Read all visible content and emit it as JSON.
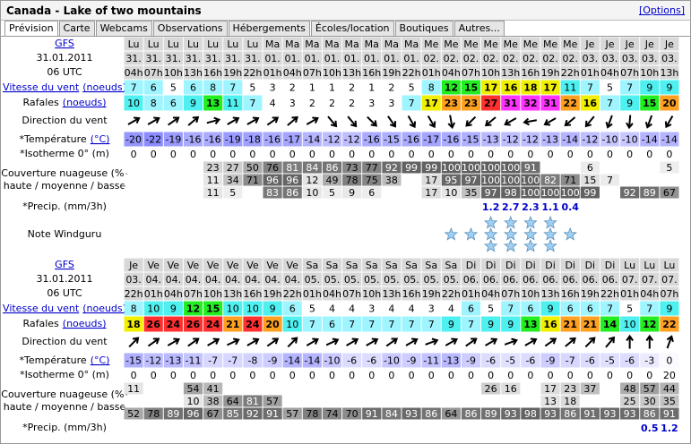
{
  "header": {
    "title": "Canada - Lake of two mountains",
    "options": "[Options]"
  },
  "tabs": [
    "Prévision",
    "Carte",
    "Webcams",
    "Observations",
    "Hébergements",
    "Écoles/location",
    "Boutiques",
    "Autres..."
  ],
  "labels": {
    "wind": "Vitesse du vent",
    "wind_unit": "(noeuds)",
    "gust": "Rafales",
    "gust_unit": "(noeuds)",
    "direction": "Direction du vent",
    "temperature": "*Température",
    "temperature_unit": "(°C)",
    "isotherm": "*Isotherme 0° (m)",
    "cloud": "Couverture nuageuse (%)",
    "cloud_levels": "haute / moyenne / basse",
    "precip": "*Precip. (mm/3h)",
    "rating": "Note Windguru"
  },
  "blocks": [
    {
      "model": "GFS",
      "run_date": "31.01.2011",
      "run_time": "06 UTC",
      "days": [
        "Lu",
        "Lu",
        "Lu",
        "Lu",
        "Lu",
        "Lu",
        "Lu",
        "Ma",
        "Ma",
        "Ma",
        "Ma",
        "Ma",
        "Ma",
        "Ma",
        "Ma",
        "Me",
        "Me",
        "Me",
        "Me",
        "Me",
        "Me",
        "Me",
        "Me",
        "Je",
        "Je",
        "Je",
        "Je",
        "Je"
      ],
      "dates": [
        "31.",
        "31.",
        "31.",
        "31.",
        "31.",
        "31.",
        "31.",
        "01.",
        "01.",
        "01.",
        "01.",
        "01.",
        "01.",
        "01.",
        "01.",
        "02.",
        "02.",
        "02.",
        "02.",
        "02.",
        "02.",
        "02.",
        "02.",
        "03.",
        "03.",
        "03.",
        "03.",
        "03."
      ],
      "hours": [
        "04h",
        "07h",
        "10h",
        "13h",
        "16h",
        "19h",
        "22h",
        "01h",
        "04h",
        "07h",
        "10h",
        "13h",
        "16h",
        "19h",
        "22h",
        "01h",
        "04h",
        "07h",
        "10h",
        "13h",
        "16h",
        "19h",
        "22h",
        "01h",
        "04h",
        "07h",
        "10h",
        "13h"
      ],
      "wind": [
        7,
        6,
        5,
        6,
        8,
        7,
        5,
        3,
        2,
        1,
        1,
        2,
        1,
        2,
        5,
        8,
        12,
        15,
        17,
        16,
        18,
        17,
        11,
        7,
        5,
        7,
        9,
        9
      ],
      "gust": [
        10,
        8,
        6,
        9,
        13,
        11,
        7,
        4,
        3,
        2,
        2,
        2,
        3,
        3,
        7,
        17,
        23,
        23,
        27,
        31,
        32,
        31,
        22,
        16,
        7,
        9,
        15,
        20
      ],
      "direction": [
        60,
        60,
        55,
        50,
        75,
        60,
        60,
        55,
        50,
        60,
        140,
        140,
        135,
        145,
        150,
        150,
        170,
        225,
        230,
        240,
        260,
        240,
        230,
        220,
        200,
        185,
        200,
        210
      ],
      "temperature": [
        -20,
        -22,
        -19,
        -16,
        -16,
        -19,
        -18,
        -16,
        -17,
        -14,
        -12,
        -12,
        -16,
        -15,
        -16,
        -17,
        -16,
        -15,
        -13,
        -12,
        -12,
        -13,
        -14,
        -12,
        -10,
        -10,
        -14,
        -14
      ],
      "isotherm": [
        0,
        0,
        0,
        0,
        0,
        0,
        0,
        0,
        0,
        0,
        0,
        0,
        0,
        0,
        0,
        0,
        0,
        0,
        0,
        0,
        0,
        0,
        0,
        0,
        0,
        0,
        0,
        0
      ],
      "cloud_high": [
        null,
        null,
        null,
        null,
        23,
        27,
        50,
        76,
        81,
        84,
        86,
        73,
        77,
        92,
        99,
        99,
        100,
        100,
        100,
        100,
        91,
        null,
        null,
        6,
        null,
        null,
        null,
        5
      ],
      "cloud_mid": [
        null,
        null,
        null,
        null,
        11,
        34,
        71,
        96,
        96,
        12,
        49,
        78,
        75,
        38,
        null,
        17,
        95,
        97,
        100,
        100,
        100,
        82,
        71,
        15,
        7,
        null,
        null,
        null
      ],
      "cloud_low": [
        null,
        null,
        null,
        null,
        11,
        5,
        null,
        83,
        86,
        10,
        5,
        9,
        6,
        null,
        null,
        17,
        10,
        35,
        97,
        98,
        100,
        100,
        100,
        99,
        null,
        92,
        89,
        67
      ],
      "precip": [
        null,
        null,
        null,
        null,
        null,
        null,
        null,
        null,
        null,
        null,
        null,
        null,
        null,
        null,
        null,
        null,
        null,
        null,
        1.2,
        2.7,
        2.3,
        1.1,
        0.4,
        null,
        null,
        null,
        null,
        null
      ],
      "rating": [
        null,
        null,
        null,
        null,
        null,
        null,
        null,
        null,
        null,
        null,
        null,
        null,
        null,
        null,
        null,
        null,
        1,
        1,
        3,
        3,
        3,
        3,
        1,
        null,
        null,
        null,
        null,
        null
      ]
    },
    {
      "model": "GFS",
      "run_date": "31.01.2011",
      "run_time": "06 UTC",
      "days": [
        "Je",
        "Ve",
        "Ve",
        "Ve",
        "Ve",
        "Ve",
        "Ve",
        "Ve",
        "Ve",
        "Sa",
        "Sa",
        "Sa",
        "Sa",
        "Sa",
        "Sa",
        "Sa",
        "Sa",
        "Di",
        "Di",
        "Di",
        "Di",
        "Di",
        "Di",
        "Di",
        "Di",
        "Lu",
        "Lu",
        "Lu"
      ],
      "dates": [
        "03.",
        "04.",
        "04.",
        "04.",
        "04.",
        "04.",
        "04.",
        "04.",
        "04.",
        "05.",
        "05.",
        "05.",
        "05.",
        "05.",
        "05.",
        "05.",
        "05.",
        "06.",
        "06.",
        "06.",
        "06.",
        "06.",
        "06.",
        "06.",
        "06.",
        "07.",
        "07.",
        "07."
      ],
      "hours": [
        "22h",
        "01h",
        "04h",
        "07h",
        "10h",
        "13h",
        "16h",
        "19h",
        "22h",
        "01h",
        "04h",
        "07h",
        "10h",
        "13h",
        "16h",
        "19h",
        "22h",
        "01h",
        "04h",
        "07h",
        "10h",
        "13h",
        "16h",
        "19h",
        "22h",
        "01h",
        "04h",
        "07h"
      ],
      "wind": [
        8,
        10,
        9,
        12,
        15,
        10,
        10,
        9,
        6,
        5,
        4,
        4,
        3,
        4,
        4,
        3,
        4,
        6,
        5,
        7,
        6,
        9,
        6,
        6,
        7,
        5,
        7,
        9
      ],
      "gust": [
        18,
        26,
        24,
        26,
        24,
        21,
        24,
        20,
        10,
        7,
        6,
        7,
        7,
        7,
        7,
        7,
        9,
        7,
        9,
        9,
        13,
        16,
        21,
        21,
        14,
        10,
        12,
        22
      ],
      "direction": [
        45,
        55,
        60,
        55,
        60,
        65,
        60,
        55,
        45,
        60,
        65,
        60,
        60,
        55,
        60,
        70,
        60,
        55,
        60,
        70,
        60,
        55,
        50,
        45,
        40,
        0,
        0,
        20
      ],
      "temperature": [
        -15,
        -12,
        -13,
        -11,
        -7,
        -7,
        -8,
        -9,
        -14,
        -14,
        -10,
        -6,
        -6,
        -10,
        -9,
        -11,
        -13,
        -9,
        -6,
        -5,
        -6,
        -9,
        -7,
        -6,
        -5,
        -6,
        -3,
        0
      ],
      "isotherm": [
        0,
        0,
        0,
        0,
        0,
        0,
        0,
        0,
        0,
        0,
        0,
        0,
        0,
        0,
        0,
        0,
        0,
        0,
        0,
        0,
        0,
        0,
        0,
        0,
        0,
        0,
        0,
        20
      ],
      "cloud_high": [
        11,
        null,
        null,
        54,
        41,
        null,
        null,
        null,
        null,
        null,
        null,
        null,
        null,
        null,
        null,
        null,
        null,
        null,
        26,
        16,
        null,
        17,
        23,
        37,
        null,
        48,
        57,
        44
      ],
      "cloud_mid": [
        null,
        null,
        null,
        10,
        38,
        64,
        81,
        57,
        null,
        null,
        null,
        null,
        null,
        null,
        null,
        null,
        null,
        null,
        null,
        null,
        null,
        13,
        18,
        null,
        null,
        25,
        30,
        35
      ],
      "cloud_low": [
        52,
        78,
        89,
        96,
        67,
        85,
        92,
        91,
        57,
        78,
        74,
        70,
        91,
        84,
        93,
        86,
        64,
        86,
        89,
        93,
        98,
        93,
        86,
        91,
        93,
        93,
        86,
        91
      ],
      "precip": [
        null,
        null,
        null,
        null,
        null,
        null,
        null,
        null,
        null,
        null,
        null,
        null,
        null,
        null,
        null,
        null,
        null,
        null,
        null,
        null,
        null,
        null,
        null,
        null,
        null,
        null,
        0.5,
        1.2
      ]
    }
  ]
}
